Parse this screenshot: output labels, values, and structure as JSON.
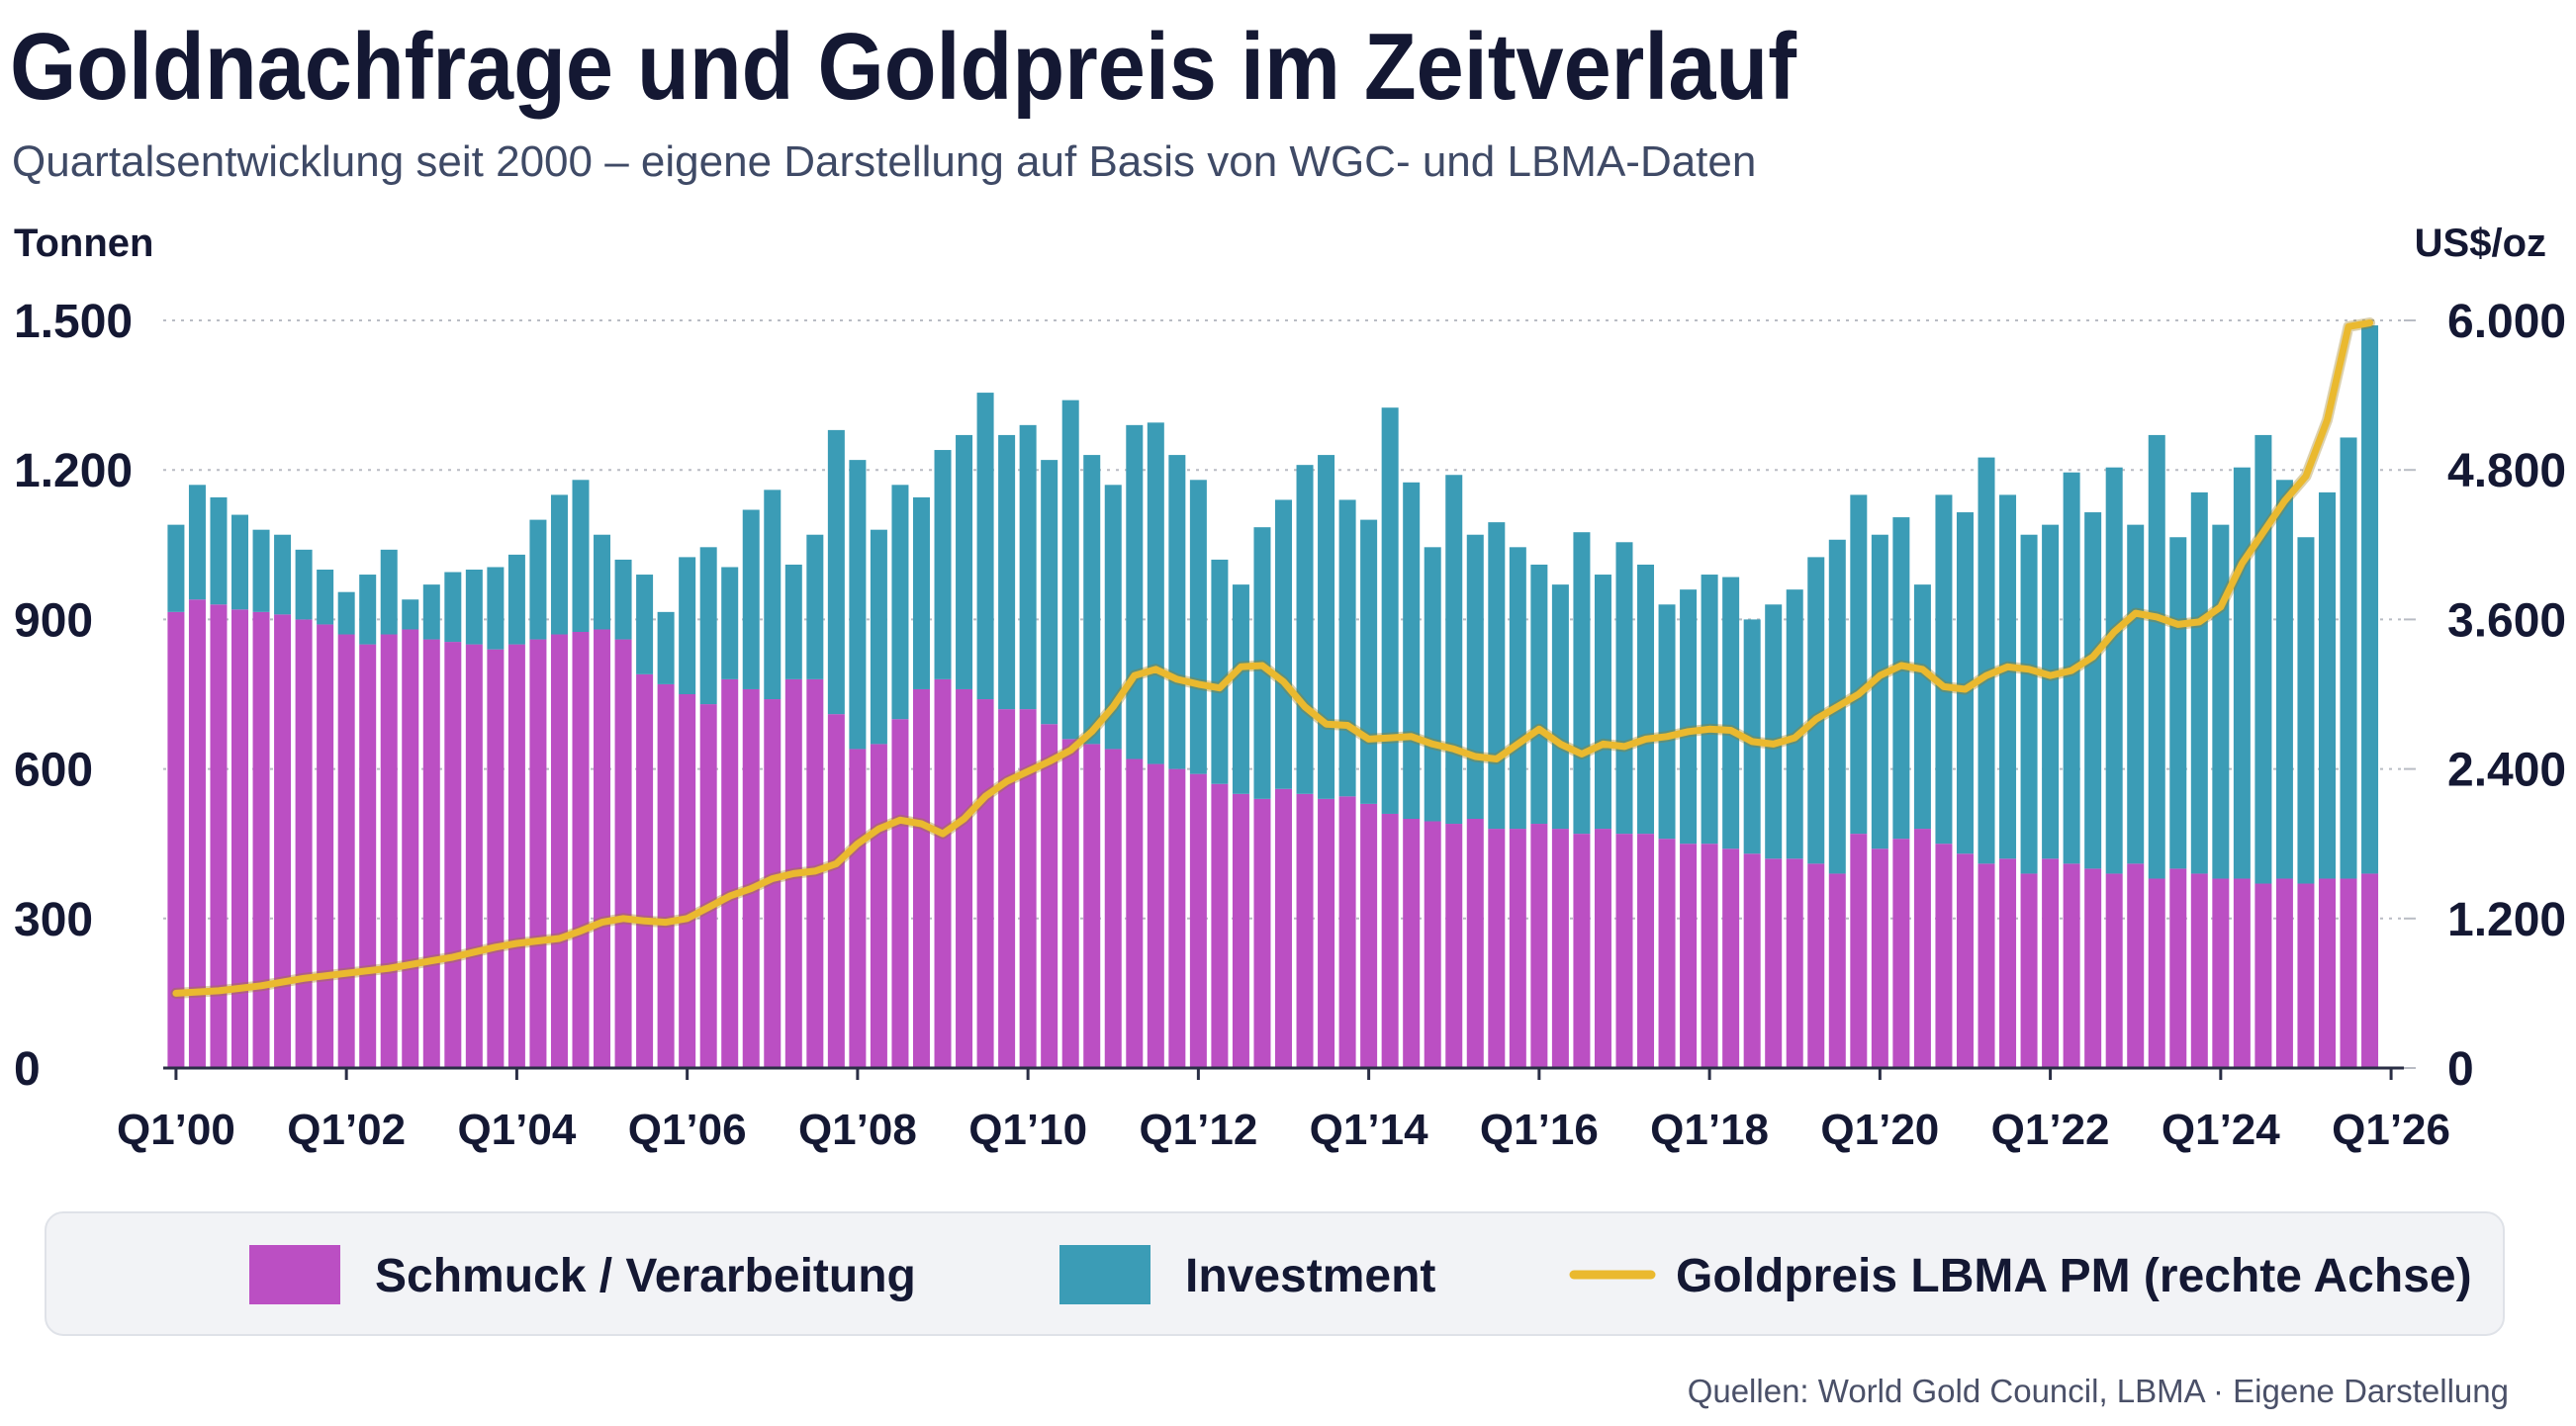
{
  "chart_data": {
    "type": "bar",
    "stacked": true,
    "title": "Goldnachfrage und Goldpreis im Zeitverlauf",
    "subtitle": "Quartalsentwicklung seit 2000 – eigene Darstellung auf Basis von WGC- und LBMA-Daten",
    "y_label": "Tonnen",
    "y2_label": "US$/oz",
    "source": "Quellen: World Gold Council, LBMA · Eigene Darstellung",
    "legend": "bottom",
    "grid": true,
    "x": [
      2000,
      2000.25,
      2000.5,
      2000.75,
      2001,
      2001.25,
      2001.5,
      2001.75,
      2002,
      2002.25,
      2002.5,
      2002.75,
      2003,
      2003.25,
      2003.5,
      2003.75,
      2004,
      2004.25,
      2004.5,
      2004.75,
      2005,
      2005.25,
      2005.5,
      2005.75,
      2006,
      2006.25,
      2006.5,
      2006.75,
      2007,
      2007.25,
      2007.5,
      2007.75,
      2008,
      2008.25,
      2008.5,
      2008.75,
      2009,
      2009.25,
      2009.5,
      2009.75,
      2010,
      2010.25,
      2010.5,
      2010.75,
      2011,
      2011.25,
      2011.5,
      2011.75,
      2012,
      2012.25,
      2012.5,
      2012.75,
      2013,
      2013.25,
      2013.5,
      2013.75,
      2014,
      2014.25,
      2014.5,
      2014.75,
      2015,
      2015.25,
      2015.5,
      2015.75,
      2016,
      2016.25,
      2016.5,
      2016.75,
      2017,
      2017.25,
      2017.5,
      2017.75,
      2018,
      2018.25,
      2018.5,
      2018.75,
      2019,
      2019.25,
      2019.5,
      2019.75,
      2020,
      2020.25,
      2020.5,
      2020.75,
      2021,
      2021.25,
      2021.5,
      2021.75,
      2022,
      2022.25,
      2022.5,
      2022.75,
      2023,
      2023.25,
      2023.5,
      2023.75,
      2024,
      2024.25,
      2024.5,
      2024.75,
      2025,
      2025.25,
      2025.5,
      2025.75
    ],
    "xlim": [
      1999.85,
      2026.15
    ],
    "xticks": [
      {
        "value": 2000,
        "label": "Q1’00"
      },
      {
        "value": 2002,
        "label": "Q1’02"
      },
      {
        "value": 2004,
        "label": "Q1’04"
      },
      {
        "value": 2006,
        "label": "Q1’06"
      },
      {
        "value": 2008,
        "label": "Q1’08"
      },
      {
        "value": 2010,
        "label": "Q1’10"
      },
      {
        "value": 2012,
        "label": "Q1’12"
      },
      {
        "value": 2014,
        "label": "Q1’14"
      },
      {
        "value": 2016,
        "label": "Q1’16"
      },
      {
        "value": 2018,
        "label": "Q1’18"
      },
      {
        "value": 2020,
        "label": "Q1’20"
      },
      {
        "value": 2022,
        "label": "Q1’22"
      },
      {
        "value": 2024,
        "label": "Q1’24"
      },
      {
        "value": 2026,
        "label": "Q1’26"
      }
    ],
    "ylim": [
      0,
      1500
    ],
    "yticks": [
      0,
      300,
      600,
      900,
      {
        "value": 1200,
        "label": "1.200"
      },
      {
        "value": 1500,
        "label": "1.500"
      }
    ],
    "y2lim": [
      0,
      6000
    ],
    "y2ticks": [
      0,
      {
        "value": 1200,
        "label": "1.200"
      },
      {
        "value": 2400,
        "label": "2.400"
      },
      {
        "value": 3600,
        "label": "3.600"
      },
      {
        "value": 4800,
        "label": "4.800"
      },
      {
        "value": 6000,
        "label": "6.000"
      }
    ],
    "series": [
      {
        "name": "Schmuck / Verarbeitung",
        "type": "bar",
        "color": "#bb4fc3",
        "values": [
          915,
          940,
          930,
          920,
          915,
          910,
          900,
          890,
          870,
          850,
          870,
          880,
          860,
          855,
          850,
          840,
          850,
          860,
          870,
          875,
          880,
          860,
          790,
          770,
          750,
          730,
          780,
          760,
          740,
          780,
          780,
          710,
          640,
          650,
          700,
          760,
          780,
          760,
          740,
          720,
          720,
          690,
          660,
          650,
          640,
          620,
          610,
          600,
          590,
          570,
          550,
          540,
          560,
          550,
          540,
          545,
          530,
          510,
          500,
          495,
          490,
          500,
          480,
          480,
          490,
          480,
          470,
          480,
          470,
          470,
          460,
          450,
          450,
          440,
          430,
          420,
          420,
          410,
          390,
          470,
          440,
          460,
          480,
          450,
          430,
          410,
          420,
          390,
          420,
          410,
          400,
          390,
          410,
          380,
          400,
          390,
          380,
          380,
          370,
          380,
          370,
          380,
          380,
          390
        ]
      },
      {
        "name": "Investment",
        "type": "bar",
        "color": "#3b9cb6",
        "values": [
          175,
          230,
          215,
          190,
          165,
          160,
          140,
          110,
          85,
          140,
          170,
          60,
          110,
          140,
          150,
          165,
          180,
          240,
          280,
          305,
          190,
          160,
          200,
          145,
          275,
          315,
          225,
          360,
          420,
          230,
          290,
          570,
          580,
          430,
          470,
          385,
          460,
          510,
          615,
          550,
          570,
          530,
          680,
          580,
          530,
          670,
          685,
          630,
          590,
          450,
          420,
          545,
          580,
          660,
          690,
          595,
          570,
          815,
          675,
          550,
          700,
          570,
          615,
          565,
          520,
          490,
          605,
          510,
          585,
          540,
          470,
          510,
          540,
          545,
          470,
          510,
          540,
          615,
          670,
          680,
          630,
          645,
          490,
          700,
          685,
          815,
          730,
          680,
          670,
          785,
          715,
          815,
          680,
          890,
          665,
          765,
          710,
          825,
          900,
          800,
          695,
          775,
          885,
          1100
        ]
      },
      {
        "name": "Goldpreis LBMA PM (rechte Achse)",
        "type": "line",
        "axis": "y2",
        "color": "#eab92f",
        "values": [
          600,
          610,
          620,
          640,
          660,
          690,
          720,
          740,
          760,
          780,
          800,
          830,
          860,
          890,
          930,
          970,
          1000,
          1020,
          1040,
          1100,
          1170,
          1200,
          1180,
          1170,
          1200,
          1290,
          1380,
          1440,
          1520,
          1560,
          1580,
          1640,
          1800,
          1920,
          1990,
          1960,
          1880,
          2000,
          2180,
          2300,
          2380,
          2460,
          2550,
          2700,
          2900,
          3150,
          3200,
          3120,
          3080,
          3050,
          3220,
          3230,
          3100,
          2900,
          2760,
          2750,
          2640,
          2650,
          2660,
          2600,
          2560,
          2500,
          2480,
          2600,
          2720,
          2600,
          2520,
          2600,
          2580,
          2640,
          2660,
          2700,
          2720,
          2710,
          2620,
          2600,
          2650,
          2800,
          2900,
          3000,
          3150,
          3230,
          3200,
          3060,
          3040,
          3150,
          3220,
          3200,
          3150,
          3190,
          3300,
          3500,
          3650,
          3620,
          3560,
          3580,
          3700,
          4050,
          4300,
          4550,
          4750,
          5200,
          5950,
          5980
        ]
      }
    ]
  }
}
